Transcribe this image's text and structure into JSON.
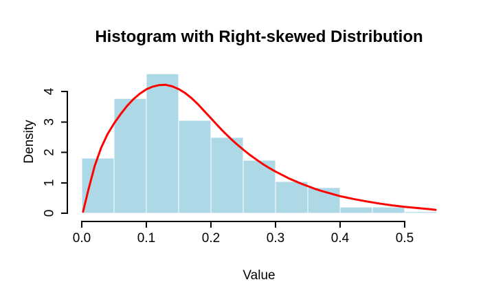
{
  "title": "Histogram with Right-skewed Distribution",
  "x_axis": {
    "label": "Value",
    "tick_labels": [
      "0.0",
      "0.1",
      "0.2",
      "0.3",
      "0.4",
      "0.5"
    ],
    "tick_values": [
      0.0,
      0.1,
      0.2,
      0.3,
      0.4,
      0.5
    ]
  },
  "y_axis": {
    "label": "Density",
    "tick_labels": [
      "0",
      "1",
      "2",
      "3",
      "4"
    ],
    "tick_values": [
      0,
      1,
      2,
      3,
      4
    ]
  },
  "colors": {
    "background": "#FFFFFF",
    "bar_fill": "#ADD8E6",
    "bar_border": "#FFFFFF",
    "curve": "#FF0000",
    "axis": "#000000",
    "text": "#000000"
  },
  "chart_data": {
    "type": "bar",
    "subtype": "histogram-with-density-curve",
    "title": "Histogram with Right-skewed Distribution",
    "xlabel": "Value",
    "ylabel": "Density",
    "xlim": [
      0,
      0.55
    ],
    "ylim": [
      0,
      4.6
    ],
    "grid": false,
    "legend": false,
    "bin_width": 0.05,
    "bin_edges": [
      0.0,
      0.05,
      0.1,
      0.15,
      0.2,
      0.25,
      0.3,
      0.35,
      0.4,
      0.45,
      0.5,
      0.55
    ],
    "densities": [
      1.81,
      3.77,
      4.58,
      3.05,
      2.49,
      1.74,
      1.04,
      0.84,
      0.2,
      0.2,
      0.05
    ],
    "curve": {
      "name": "kernel-density-estimate",
      "x": [
        0.002,
        0.01,
        0.02,
        0.03,
        0.04,
        0.05,
        0.06,
        0.07,
        0.08,
        0.09,
        0.1,
        0.11,
        0.12,
        0.13,
        0.14,
        0.15,
        0.16,
        0.17,
        0.18,
        0.19,
        0.2,
        0.21,
        0.22,
        0.23,
        0.24,
        0.25,
        0.26,
        0.27,
        0.28,
        0.29,
        0.3,
        0.31,
        0.32,
        0.33,
        0.34,
        0.35,
        0.36,
        0.37,
        0.38,
        0.39,
        0.4,
        0.42,
        0.44,
        0.46,
        0.48,
        0.5,
        0.52,
        0.54,
        0.548
      ],
      "y": [
        0.05,
        0.75,
        1.55,
        2.15,
        2.6,
        2.95,
        3.25,
        3.52,
        3.75,
        3.93,
        4.07,
        4.16,
        4.21,
        4.22,
        4.17,
        4.08,
        3.95,
        3.78,
        3.58,
        3.35,
        3.12,
        2.89,
        2.67,
        2.46,
        2.27,
        2.09,
        1.92,
        1.77,
        1.62,
        1.49,
        1.37,
        1.26,
        1.15,
        1.06,
        0.97,
        0.89,
        0.81,
        0.74,
        0.68,
        0.62,
        0.56,
        0.47,
        0.39,
        0.32,
        0.26,
        0.21,
        0.17,
        0.13,
        0.11
      ]
    }
  }
}
